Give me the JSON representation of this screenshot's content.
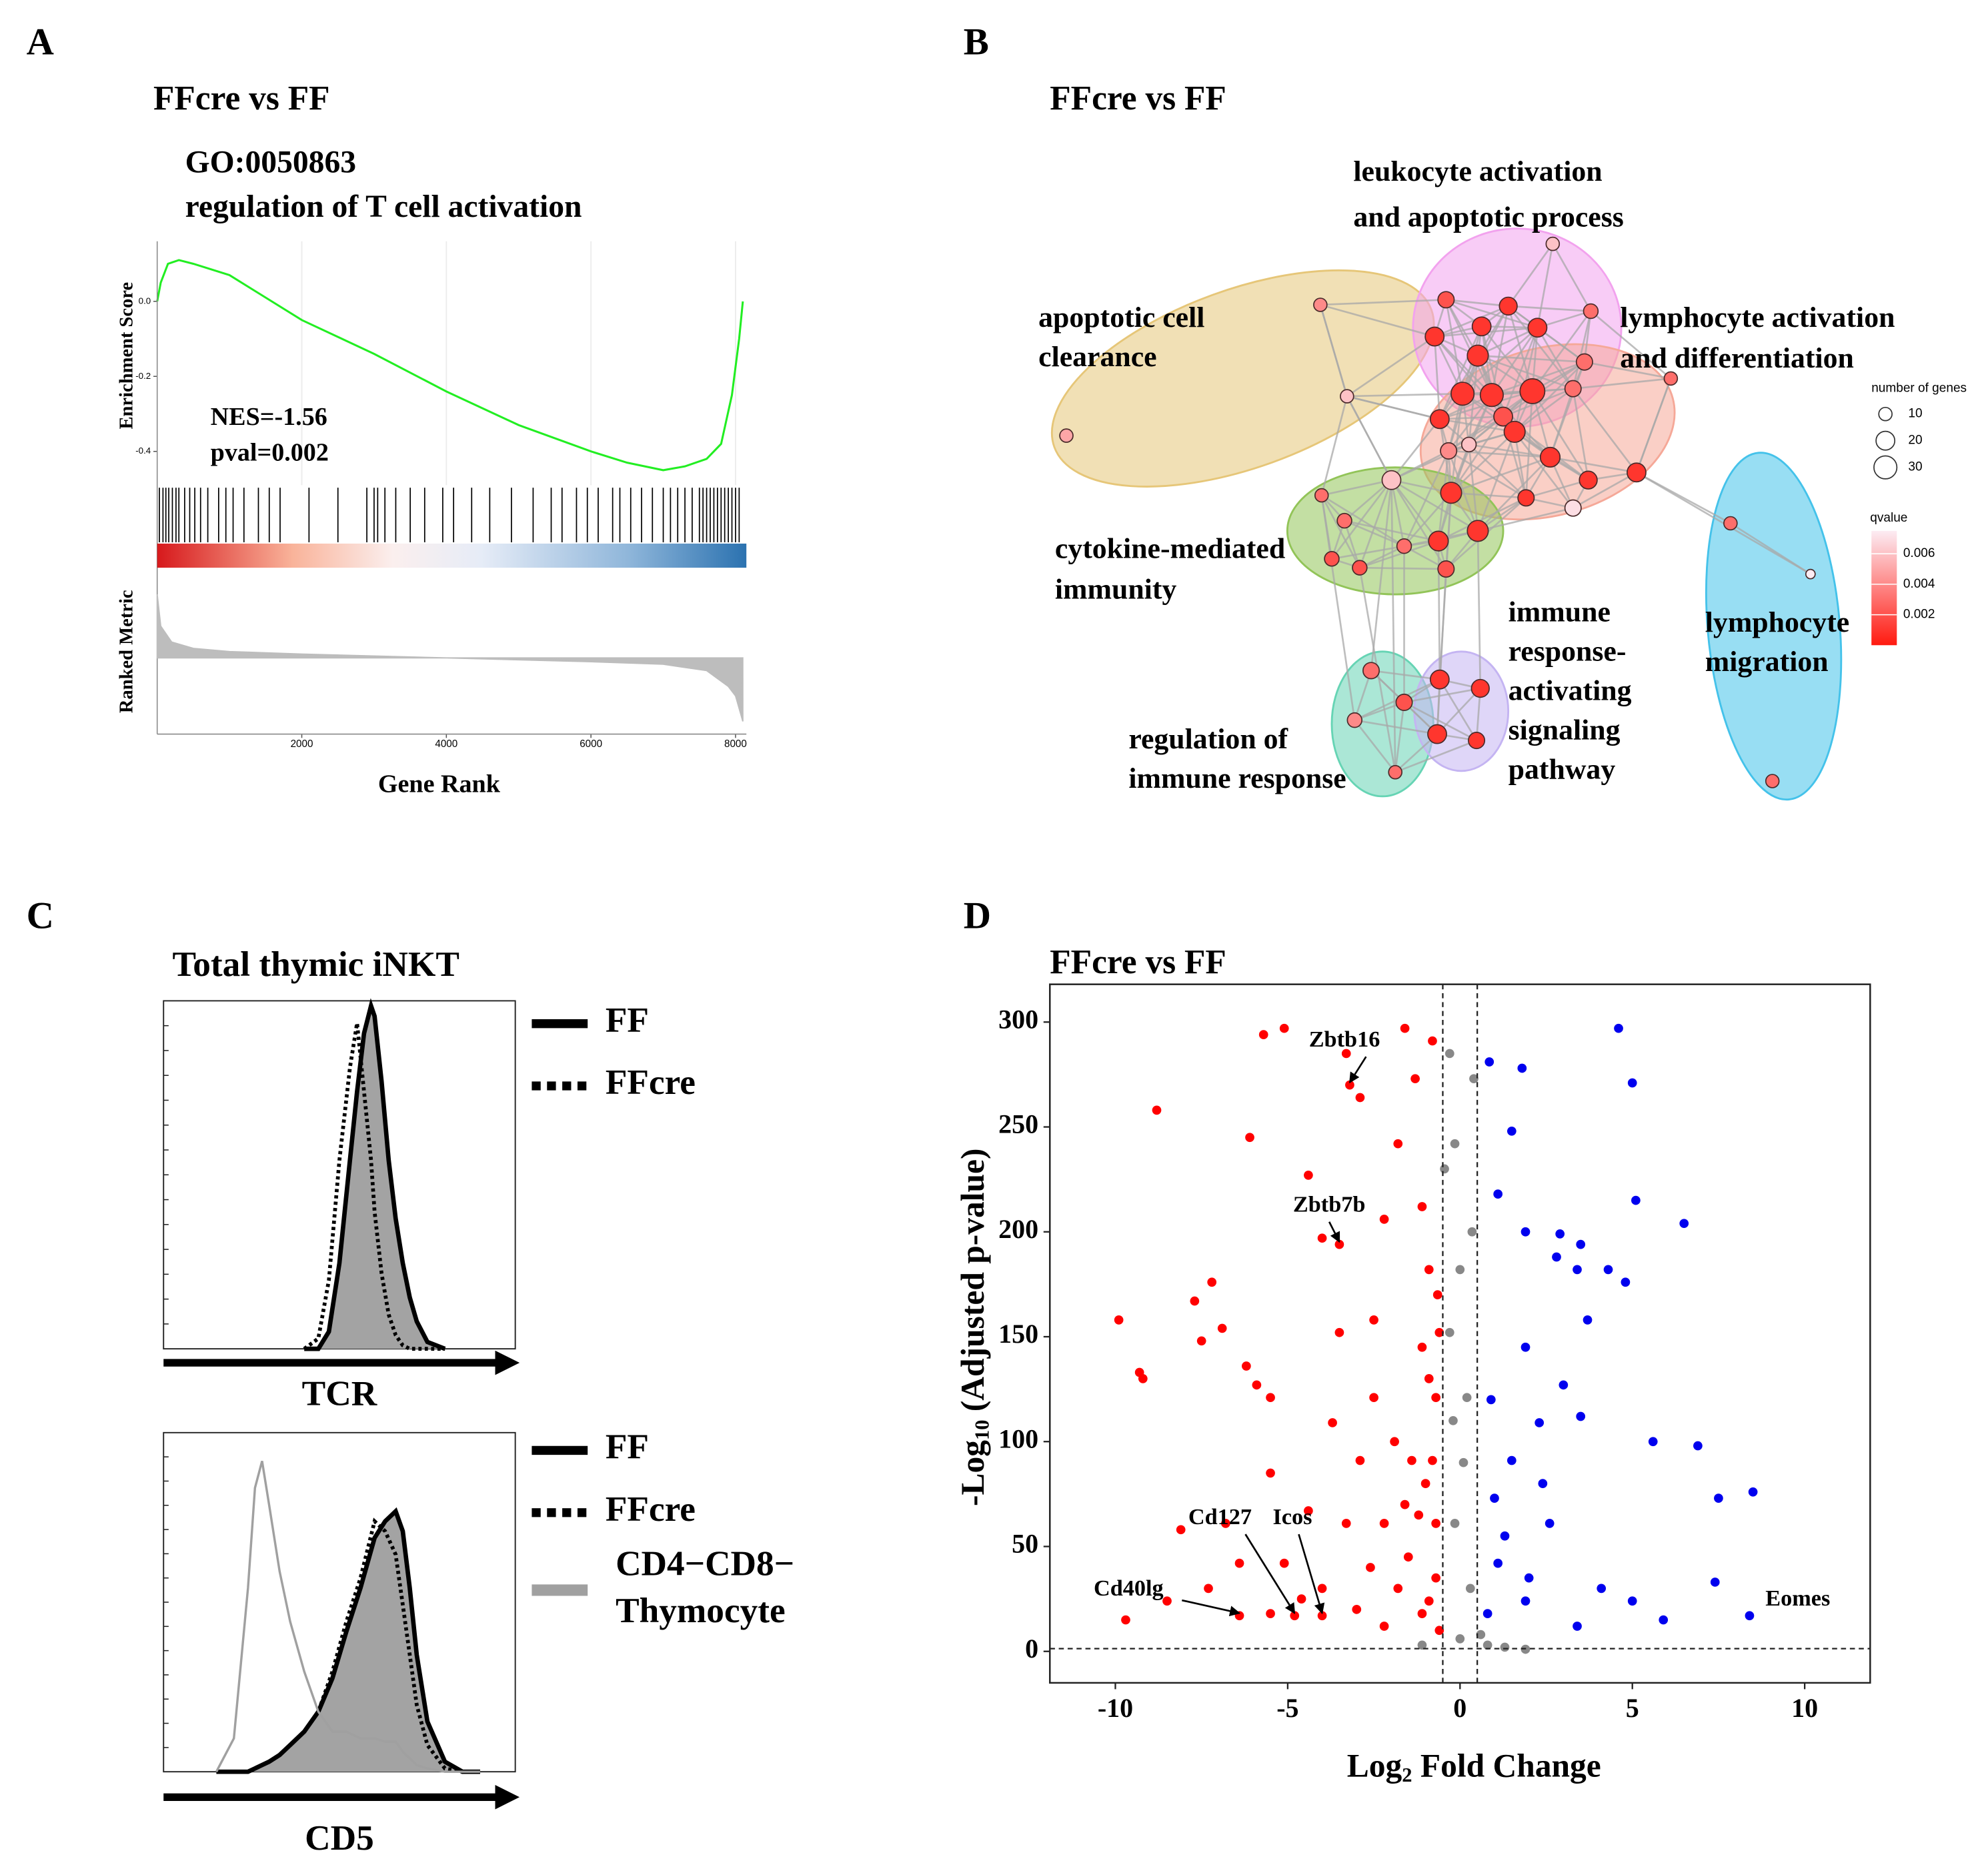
{
  "panels": [
    "A",
    "B",
    "C",
    "D"
  ],
  "chart_data": [
    {
      "type": "line",
      "title": "FFcre vs FF",
      "subtitle": [
        "GO:0050863",
        "regulation of T cell activation"
      ],
      "ylabel": "Enrichment Score",
      "ylabel2": "Ranked Metric",
      "xlabel": "Gene Rank",
      "annotations": [
        "NES=-1.56",
        "pval=0.002"
      ],
      "x": [
        0,
        50,
        150,
        300,
        500,
        1000,
        2000,
        3000,
        4000,
        5000,
        6000,
        6500,
        7000,
        7300,
        7600,
        7800,
        7950,
        8050,
        8100
      ],
      "values": [
        0,
        0.05,
        0.1,
        0.11,
        0.1,
        0.07,
        -0.05,
        -0.14,
        -0.24,
        -0.33,
        -0.4,
        -0.43,
        -0.45,
        -0.44,
        -0.42,
        -0.38,
        -0.25,
        -0.1,
        0
      ],
      "color": "#22ee22",
      "xlim": [
        0,
        8150
      ],
      "xticks": [
        2000,
        4000,
        6000,
        8000
      ],
      "ylim": [
        -0.49,
        0.16
      ],
      "yticks": [
        {
          "value": 0,
          "label": "0.0"
        },
        -0.2,
        -0.4
      ],
      "hits": [
        30,
        80,
        120,
        160,
        210,
        260,
        300,
        380,
        450,
        520,
        600,
        700,
        850,
        950,
        1050,
        1200,
        1400,
        1550,
        1700,
        2100,
        2500,
        2900,
        3000,
        3050,
        3150,
        3300,
        3500,
        3700,
        3950,
        4100,
        4350,
        4600,
        4900,
        5200,
        5450,
        5600,
        5800,
        5950,
        6100,
        6300,
        6400,
        6550,
        6700,
        6850,
        7000,
        7100,
        7200,
        7300,
        7400,
        7500,
        7550,
        7600,
        7650,
        7700,
        7750,
        7800,
        7850,
        7900,
        7950,
        8000,
        8050
      ],
      "metric": {
        "x": [
          0,
          50,
          200,
          500,
          1000,
          2000,
          4000,
          6000,
          7000,
          7600,
          7900,
          8000,
          8100
        ],
        "values": [
          1,
          0.5,
          0.25,
          0.15,
          0.1,
          0.06,
          0,
          -0.06,
          -0.1,
          -0.2,
          -0.45,
          -0.6,
          -1
        ],
        "ylim": [
          -1.2,
          1.4
        ],
        "color": "#bdbdbd"
      }
    },
    {
      "type": "network",
      "title": "FFcre vs FF",
      "clusters": [
        {
          "label": [
            "apoptotic cell",
            "clearance"
          ],
          "color": "#e6c678"
        },
        {
          "label": [
            "leukocyte activation",
            "and apoptotic process"
          ],
          "color": "#f2a2ee"
        },
        {
          "label": [
            "lymphocyte activation",
            "and differentiation"
          ],
          "color": "#f5a898"
        },
        {
          "label": [
            "cytokine-mediated",
            "immunity"
          ],
          "color": "#92c458"
        },
        {
          "label": [
            "regulation of",
            "immune response"
          ],
          "color": "#66d4b4"
        },
        {
          "label": [
            "immune",
            "response-",
            "activating",
            "signaling",
            "pathway"
          ],
          "color": "#c4b4f2"
        },
        {
          "label": [
            "lymphocyte",
            "migration"
          ],
          "color": "#44c2ea"
        }
      ],
      "nodes": [
        {
          "genes": 10,
          "qvalue": 0.004
        },
        {
          "genes": 10,
          "qvalue": 0.005
        },
        {
          "genes": 10,
          "qvalue": 0.006
        },
        {
          "genes": 10,
          "qvalue": 0.006
        },
        {
          "genes": 15,
          "qvalue": 0.002
        },
        {
          "genes": 18,
          "qvalue": 0.001
        },
        {
          "genes": 12,
          "qvalue": 0.003
        },
        {
          "genes": 20,
          "qvalue": 0.001
        },
        {
          "genes": 20,
          "qvalue": 0.001
        },
        {
          "genes": 20,
          "qvalue": 0.001
        },
        {
          "genes": 15,
          "qvalue": 0.003
        },
        {
          "genes": 25,
          "qvalue": 0.001
        },
        {
          "genes": 30,
          "qvalue": 0.001
        },
        {
          "genes": 30,
          "qvalue": 0.001
        },
        {
          "genes": 35,
          "qvalue": 0.001
        },
        {
          "genes": 15,
          "qvalue": 0.003
        },
        {
          "genes": 10,
          "qvalue": 0.003
        },
        {
          "genes": 20,
          "qvalue": 0.001
        },
        {
          "genes": 20,
          "qvalue": 0.002
        },
        {
          "genes": 12,
          "qvalue": 0.006
        },
        {
          "genes": 15,
          "qvalue": 0.004
        },
        {
          "genes": 25,
          "qvalue": 0.001
        },
        {
          "genes": 22,
          "qvalue": 0.001
        },
        {
          "genes": 18,
          "qvalue": 0.001
        },
        {
          "genes": 20,
          "qvalue": 0.001
        },
        {
          "genes": 15,
          "qvalue": 0.007
        },
        {
          "genes": 15,
          "qvalue": 0.001
        },
        {
          "genes": 20,
          "qvalue": 0.006
        },
        {
          "genes": 25,
          "qvalue": 0.001
        },
        {
          "genes": 10,
          "qvalue": 0.003
        },
        {
          "genes": 12,
          "qvalue": 0.003
        },
        {
          "genes": 12,
          "qvalue": 0.003
        },
        {
          "genes": 22,
          "qvalue": 0.001
        },
        {
          "genes": 25,
          "qvalue": 0.001
        },
        {
          "genes": 12,
          "qvalue": 0.002
        },
        {
          "genes": 12,
          "qvalue": 0.002
        },
        {
          "genes": 15,
          "qvalue": 0.002
        },
        {
          "genes": 10,
          "qvalue": 0.003
        },
        {
          "genes": 5,
          "qvalue": 0.008
        },
        {
          "genes": 10,
          "qvalue": 0.003
        },
        {
          "genes": 15,
          "qvalue": 0.003
        },
        {
          "genes": 12,
          "qvalue": 0.004
        },
        {
          "genes": 15,
          "qvalue": 0.002
        },
        {
          "genes": 10,
          "qvalue": 0.003
        },
        {
          "genes": 20,
          "qvalue": 0.001
        },
        {
          "genes": 18,
          "qvalue": 0.001
        },
        {
          "genes": 20,
          "qvalue": 0.001
        },
        {
          "genes": 15,
          "qvalue": 0.001
        }
      ],
      "size_legend": {
        "title": "number of genes",
        "ticks": [
          10,
          20,
          30
        ]
      },
      "color_legend": {
        "title": "qvalue",
        "ticks": [
          0.002,
          0.004,
          0.006
        ],
        "lim": [
          0,
          0.0075
        ],
        "colors": [
          "#ff1a10",
          "#fcecf3"
        ]
      }
    },
    {
      "type": "density",
      "title": "Total thymic iNKT",
      "xlabel": "TCR",
      "xlim": [
        0,
        100
      ],
      "ylim": [
        0,
        100
      ],
      "x": [
        40,
        44,
        47,
        50,
        53,
        55,
        57,
        59,
        60,
        62,
        64,
        66,
        68,
        70,
        72,
        75,
        80
      ],
      "series": [
        {
          "name": "FF",
          "color": "#000000",
          "style": "solid",
          "fill": "#a3a3a3",
          "values": [
            0,
            0,
            5,
            25,
            55,
            75,
            92,
            100,
            97,
            78,
            55,
            38,
            25,
            15,
            8,
            2,
            0
          ]
        },
        {
          "name": "FFcre",
          "color": "#000000",
          "style": "dotted",
          "values": [
            0,
            3,
            20,
            55,
            82,
            95,
            75,
            55,
            40,
            22,
            10,
            4,
            1,
            0,
            0,
            0,
            0
          ]
        }
      ]
    },
    {
      "type": "density",
      "xlabel": "CD5",
      "xlim": [
        0,
        100
      ],
      "ylim": [
        0,
        100
      ],
      "x": [
        15,
        20,
        24,
        26,
        28,
        30,
        33,
        36,
        40,
        44,
        48,
        52,
        56,
        60,
        63,
        66,
        68,
        70,
        72,
        75,
        80,
        85,
        90
      ],
      "series": [
        {
          "name": "FF",
          "color": "#000000",
          "style": "solid",
          "fill": "#a3a3a3",
          "values": [
            0,
            0,
            0,
            1,
            2,
            3,
            5,
            8,
            12,
            18,
            28,
            42,
            55,
            70,
            75,
            78,
            72,
            55,
            35,
            15,
            3,
            0,
            0
          ]
        },
        {
          "name": "FFcre",
          "color": "#000000",
          "style": "dotted",
          "values": [
            0,
            0,
            0,
            1,
            2,
            3,
            5,
            8,
            12,
            18,
            30,
            45,
            58,
            75,
            72,
            65,
            50,
            35,
            20,
            8,
            1,
            0,
            0
          ]
        },
        {
          "name": "CD4−CD8− Thymocyte",
          "color": "#a0a0a0",
          "style": "grey",
          "values": [
            0,
            10,
            55,
            85,
            93,
            80,
            60,
            45,
            30,
            18,
            12,
            12,
            10,
            10,
            9,
            9,
            6,
            4,
            2,
            1,
            0,
            0,
            0
          ]
        }
      ]
    },
    {
      "type": "scatter",
      "title": "FFcre vs FF",
      "xlabel": {
        "text": "Log",
        "sub": "2",
        "rest": " Fold Change"
      },
      "ylabel": {
        "text": "-Log",
        "sub": "10",
        "rest": " (Adjusted p-value)"
      },
      "xlim": [
        -11.9,
        11.9
      ],
      "xticks": [
        -10,
        -5,
        0,
        5,
        10
      ],
      "ylim": [
        -15,
        318
      ],
      "yticks": [
        0,
        50,
        100,
        150,
        200,
        250,
        300
      ],
      "vlines": [
        -0.5,
        0.5
      ],
      "hlines": [
        1.3
      ],
      "series": [
        {
          "color": "#ff0000",
          "x": [
            -9.9,
            -9.3,
            -9.2,
            -8.8,
            -9.7,
            -8.1,
            -7.7,
            -7.5,
            -7.2,
            -6.9,
            -6.2,
            -5.9,
            -6.8,
            -6.4,
            -5.5,
            -5.5,
            -6.1,
            -5.7,
            -4.4,
            -4.0,
            -5.1,
            -3.3,
            -2.9,
            -3.5,
            -3.2,
            -3.5,
            -2.5,
            -2.2,
            -1.8,
            -1.6,
            -1.3,
            -1.1,
            -0.9,
            -0.7,
            -0.8,
            -2.9,
            -3.3,
            -4.0,
            -5.5,
            -6.4,
            -4.8,
            -4.0,
            -2.2,
            -1.8,
            -1.4,
            -1.1,
            -2.5,
            -3.7,
            -2.2,
            -0.7,
            -0.9,
            -8.5,
            -7.3,
            -5.1,
            -4.4,
            -0.8,
            -0.6,
            -1.1,
            -1.5,
            -1.0,
            -0.7,
            -1.9,
            -2.6,
            -1.2,
            -0.6,
            -0.9,
            -1.6,
            -3.0,
            -4.6,
            -0.65
          ],
          "values": [
            158,
            133,
            130,
            258,
            15,
            58,
            167,
            148,
            176,
            154,
            136,
            127,
            61,
            42,
            85,
            121,
            245,
            294,
            227,
            197,
            297,
            285,
            264,
            194,
            270,
            152,
            158,
            206,
            242,
            297,
            273,
            212,
            182,
            121,
            291,
            91,
            61,
            30,
            18,
            17,
            17,
            17,
            61,
            30,
            91,
            18,
            121,
            109,
            12,
            61,
            24,
            24,
            30,
            42,
            67,
            91,
            152,
            145,
            45,
            80,
            35,
            100,
            40,
            65,
            10,
            130,
            70,
            20,
            25,
            170
          ]
        },
        {
          "color": "#888888",
          "x": [
            -0.3,
            -0.15,
            0,
            0.2,
            0.4,
            -0.15,
            0,
            0.8,
            -1.1,
            1.9,
            -0.3,
            0.3,
            -0.45,
            0.1,
            -0.2,
            0.35,
            0.6,
            1.3
          ],
          "values": [
            285,
            242,
            182,
            121,
            273,
            61,
            6,
            3,
            3,
            1,
            152,
            30,
            230,
            90,
            110,
            200,
            8,
            2
          ]
        },
        {
          "color": "#0000ee",
          "x": [
            0.85,
            1.8,
            1.5,
            1.1,
            1.9,
            2.9,
            2.8,
            3.5,
            3.4,
            4.6,
            5.0,
            5.1,
            6.5,
            4.3,
            4.8,
            3.7,
            1.9,
            3.0,
            3.5,
            5.6,
            6.9,
            7.5,
            8.5,
            7.4,
            8.4,
            5.9,
            4.1,
            2.6,
            1.9,
            1.1,
            1.5,
            2.3,
            3.4,
            5.0,
            0.8,
            1.0,
            1.3,
            2.0,
            0.9,
            2.4
          ],
          "values": [
            281,
            278,
            248,
            218,
            200,
            199,
            188,
            194,
            182,
            297,
            271,
            215,
            204,
            182,
            176,
            158,
            145,
            127,
            112,
            100,
            98,
            73,
            76,
            33,
            17,
            15,
            30,
            61,
            24,
            42,
            91,
            109,
            12,
            24,
            18,
            73,
            55,
            35,
            120,
            80
          ]
        }
      ],
      "annotations": [
        {
          "label": "Zbtb16",
          "x": -3.2,
          "y": 270
        },
        {
          "label": "Zbtb7b",
          "x": -3.5,
          "y": 194
        },
        {
          "label": "Cd127",
          "x": -4.8,
          "y": 17
        },
        {
          "label": "Icos",
          "x": -4.0,
          "y": 17
        },
        {
          "label": "Cd40lg",
          "x": -6.4,
          "y": 17
        },
        {
          "label": "Eomes",
          "x": 8.4,
          "y": 17
        }
      ]
    }
  ]
}
